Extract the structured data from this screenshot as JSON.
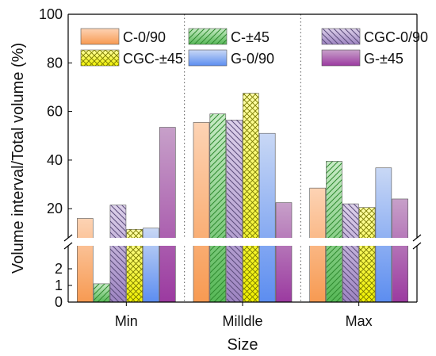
{
  "chart_data": {
    "type": "bar",
    "categories": [
      "Min",
      "Milldle",
      "Max"
    ],
    "series": [
      {
        "name": "C-0/90",
        "color_top": "#fdd3b4",
        "color_bottom": "#f79a52",
        "hatch": "none",
        "values": [
          16,
          55.5,
          28.5
        ]
      },
      {
        "name": "C-±45",
        "color_top": "#c8ebc6",
        "color_bottom": "#57b857",
        "hatch": "diag",
        "values": [
          1.1,
          59,
          39.5
        ]
      },
      {
        "name": "CGC-0/90",
        "color_top": "#ddd1ea",
        "color_bottom": "#9e85c2",
        "hatch": "back",
        "values": [
          21.5,
          56.5,
          22
        ]
      },
      {
        "name": "CGC-±45",
        "color_top": "#ffffa8",
        "color_bottom": "#f0f000",
        "hatch": "cross",
        "values": [
          11.5,
          67.5,
          20.5
        ]
      },
      {
        "name": "G-0/90",
        "color_top": "#c9d8f5",
        "color_bottom": "#5c8df0",
        "hatch": "none",
        "values": [
          12,
          51,
          36.8
        ]
      },
      {
        "name": "G-±45",
        "color_top": "#c7a0c9",
        "color_bottom": "#9b3aa0",
        "hatch": "none",
        "values": [
          53.5,
          22.5,
          24
        ]
      }
    ],
    "xlabel": "Size",
    "ylabel": "Volume interval/Total volume (%)",
    "axis_break": true,
    "lower_segment": {
      "ylim": [
        0,
        3
      ],
      "ticks": [
        "0",
        "1",
        "2"
      ]
    },
    "upper_segment": {
      "ylim": [
        8,
        100
      ],
      "ticks": [
        "20",
        "40",
        "60",
        "80",
        "100"
      ]
    },
    "legend": {
      "placement": "top",
      "columns": 3
    },
    "grid": false,
    "separators": "dotted vertical lines between categories"
  }
}
